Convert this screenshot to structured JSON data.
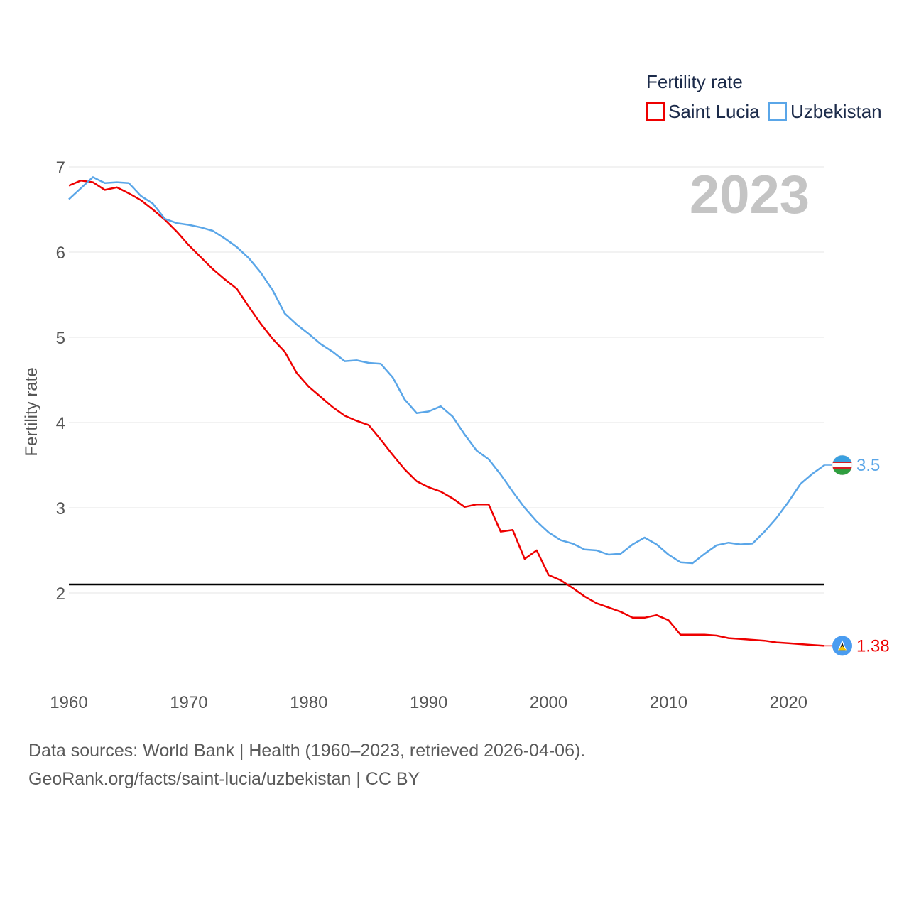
{
  "footer": {
    "line1": "Data sources: World Bank | Health (1960–2023, retrieved 2026-04-06).",
    "line2": "GeoRank.org/facts/saint-lucia/uzbekistan | CC BY"
  },
  "chart_data": {
    "type": "line",
    "title": "Fertility rate",
    "ylabel": "Fertility rate",
    "xlabel": "",
    "year_label": "2023",
    "xlim": [
      1960,
      2023
    ],
    "ylim": [
      1.0,
      7.0
    ],
    "x_ticks": [
      1960,
      1970,
      1980,
      1990,
      2000,
      2010,
      2020
    ],
    "y_ticks": [
      2,
      3,
      4,
      5,
      6,
      7
    ],
    "reference_line": 2.1,
    "legend": {
      "title": "Fertility rate",
      "position": "top-right"
    },
    "x": [
      1960,
      1961,
      1962,
      1963,
      1964,
      1965,
      1966,
      1967,
      1968,
      1969,
      1970,
      1971,
      1972,
      1973,
      1974,
      1975,
      1976,
      1977,
      1978,
      1979,
      1980,
      1981,
      1982,
      1983,
      1984,
      1985,
      1986,
      1987,
      1988,
      1989,
      1990,
      1991,
      1992,
      1993,
      1994,
      1995,
      1996,
      1997,
      1998,
      1999,
      2000,
      2001,
      2002,
      2003,
      2004,
      2005,
      2006,
      2007,
      2008,
      2009,
      2010,
      2011,
      2012,
      2013,
      2014,
      2015,
      2016,
      2017,
      2018,
      2019,
      2020,
      2021,
      2022,
      2023
    ],
    "series": [
      {
        "name": "Saint Lucia",
        "color": "#ee0000",
        "end_label": "1.38",
        "values": [
          6.78,
          6.84,
          6.82,
          6.73,
          6.76,
          6.69,
          6.61,
          6.5,
          6.38,
          6.24,
          6.08,
          5.94,
          5.8,
          5.68,
          5.57,
          5.36,
          5.16,
          4.98,
          4.83,
          4.58,
          4.42,
          4.3,
          4.18,
          4.08,
          4.02,
          3.97,
          3.8,
          3.62,
          3.45,
          3.31,
          3.24,
          3.19,
          3.11,
          3.01,
          3.04,
          3.04,
          2.72,
          2.74,
          2.4,
          2.5,
          2.21,
          2.15,
          2.06,
          1.96,
          1.88,
          1.83,
          1.78,
          1.71,
          1.71,
          1.74,
          1.68,
          1.51,
          1.51,
          1.51,
          1.5,
          1.47,
          1.46,
          1.45,
          1.44,
          1.42,
          1.41,
          1.4,
          1.39,
          1.38
        ]
      },
      {
        "name": "Uzbekistan",
        "color": "#5aa6e8",
        "end_label": "3.5",
        "values": [
          6.62,
          6.75,
          6.88,
          6.81,
          6.82,
          6.81,
          6.66,
          6.57,
          6.39,
          6.34,
          6.32,
          6.29,
          6.25,
          6.16,
          6.06,
          5.93,
          5.76,
          5.55,
          5.28,
          5.15,
          5.04,
          4.92,
          4.83,
          4.72,
          4.73,
          4.7,
          4.69,
          4.53,
          4.27,
          4.11,
          4.13,
          4.19,
          4.07,
          3.86,
          3.67,
          3.57,
          3.39,
          3.19,
          3.0,
          2.84,
          2.71,
          2.62,
          2.58,
          2.51,
          2.5,
          2.45,
          2.46,
          2.57,
          2.65,
          2.57,
          2.45,
          2.36,
          2.35,
          2.46,
          2.56,
          2.59,
          2.57,
          2.58,
          2.72,
          2.88,
          3.07,
          3.28,
          3.4,
          3.5
        ]
      }
    ]
  }
}
